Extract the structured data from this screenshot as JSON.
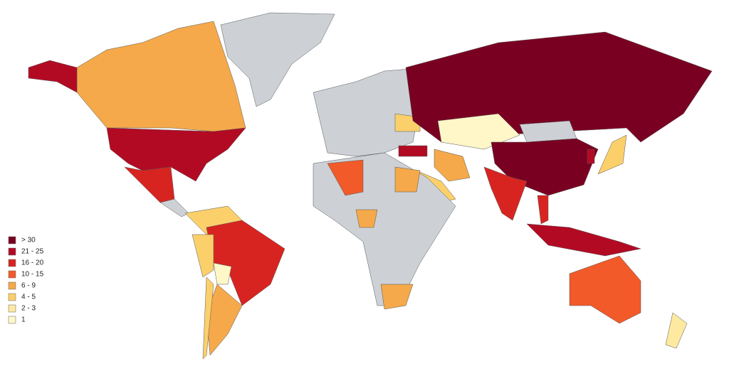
{
  "legend": {
    "items": [
      {
        "label": "> 30",
        "color": "#7a0022"
      },
      {
        "label": "21 - 25",
        "color": "#b30a24"
      },
      {
        "label": "16 - 20",
        "color": "#d82420"
      },
      {
        "label": "10 - 15",
        "color": "#f25a29"
      },
      {
        "label": "6 - 9",
        "color": "#f5a94a"
      },
      {
        "label": "4 - 5",
        "color": "#fbd06b"
      },
      {
        "label": "2 - 3",
        "color": "#fde9a0"
      },
      {
        "label": "1",
        "color": "#fff7c8"
      }
    ]
  }
}
